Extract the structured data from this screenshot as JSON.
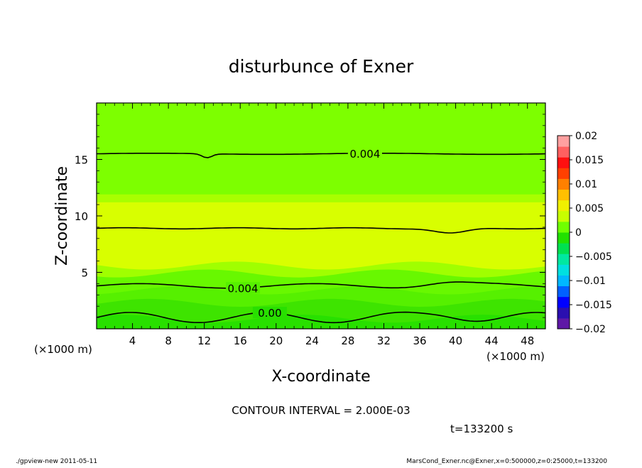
{
  "chart_data": {
    "type": "contour",
    "title": "disturbunce of Exner",
    "xlabel": "X-coordinate",
    "ylabel": "Z-coordinate",
    "x_unit_left": "(×1000 m)",
    "x_unit_right": "(×1000 m)",
    "xlim": [
      0,
      50
    ],
    "ylim": [
      0,
      20
    ],
    "x_ticks": [
      4,
      8,
      12,
      16,
      20,
      24,
      28,
      32,
      36,
      40,
      44,
      48
    ],
    "x_tick_labels": [
      "4",
      "8",
      "12",
      "16",
      "20",
      "24",
      "28",
      "32",
      "36",
      "40",
      "44",
      "48"
    ],
    "y_ticks": [
      5,
      10,
      15
    ],
    "y_tick_labels": [
      "5",
      "10",
      "15"
    ],
    "colorbar": {
      "min": -0.02,
      "max": 0.02,
      "tick_values": [
        0.02,
        0.015,
        0.01,
        0.005,
        0,
        -0.005,
        -0.01,
        -0.015,
        -0.02
      ],
      "tick_labels": [
        "0.02",
        "0.015",
        "0.01",
        "0.005",
        "0",
        "−0.005",
        "−0.01",
        "−0.015",
        "−0.02"
      ],
      "colors": [
        "#5e18a6",
        "#2a0fb0",
        "#0000ff",
        "#0060ff",
        "#00b8ff",
        "#00e0e0",
        "#00e8a0",
        "#00e050",
        "#22e000",
        "#70ff00",
        "#c8ff00",
        "#f0f000",
        "#ffc000",
        "#ff8000",
        "#ff4000",
        "#ff1010",
        "#ff6060",
        "#ffa0a0"
      ]
    },
    "contour_levels": [
      {
        "value": 0.0,
        "z": 1.0,
        "label": "0.00",
        "label_x": 19.3
      },
      {
        "value": 0.004,
        "z": 3.8,
        "label": "0.004",
        "label_x": 16.3
      },
      {
        "value": 0.006,
        "z": 8.9,
        "label": "",
        "label_x": null
      },
      {
        "value": 0.004,
        "z": 15.5,
        "label": "0.004",
        "label_x": 29.9
      }
    ],
    "contour_interval_label": "CONTOUR INTERVAL = 2.000E-03",
    "time_label": "t=133200 s"
  },
  "footer": {
    "left": "./gpview-new  2011-05-11",
    "right": "MarsCond_Exner.nc@Exner,x=0:500000,z=0:25000,t=133200"
  },
  "colors": {
    "field_top": "#7dff00",
    "field_mid": "#d8ff00",
    "field_low": "#3ee400",
    "contour": "#000000"
  }
}
